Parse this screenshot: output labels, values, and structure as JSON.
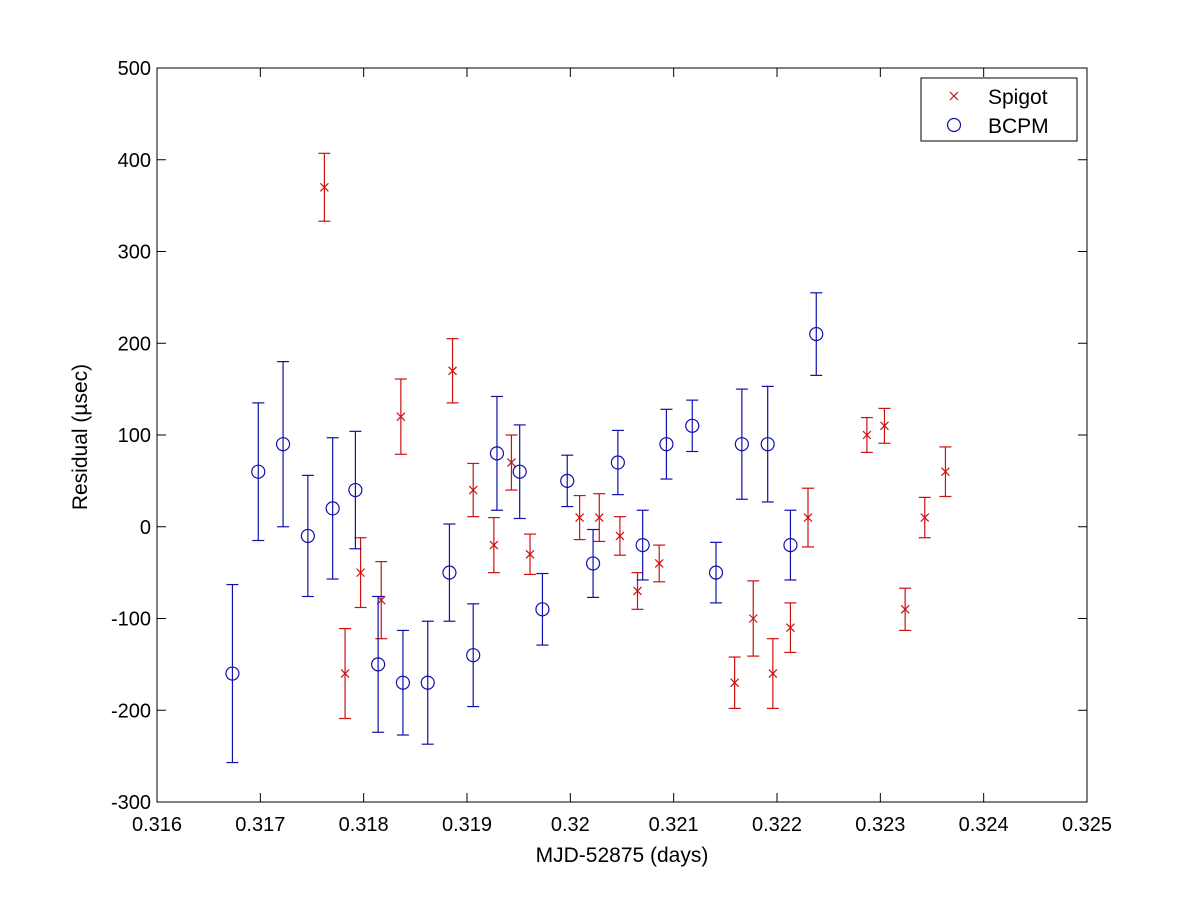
{
  "chart_data": {
    "type": "scatter",
    "title": "",
    "xlabel": "MJD-52875 (days)",
    "ylabel": "Residual (µsec)",
    "xlim": [
      0.316,
      0.325
    ],
    "ylim": [
      -300,
      500
    ],
    "xticks": [
      0.316,
      0.317,
      0.318,
      0.319,
      0.32,
      0.321,
      0.322,
      0.323,
      0.324,
      0.325
    ],
    "xtick_labels": [
      "0.316",
      "0.317",
      "0.318",
      "0.319",
      "0.32",
      "0.321",
      "0.322",
      "0.323",
      "0.324",
      "0.325"
    ],
    "yticks": [
      -300,
      -200,
      -100,
      0,
      100,
      200,
      300,
      400,
      500
    ],
    "ytick_labels": [
      "-300",
      "-200",
      "-100",
      "0",
      "100",
      "200",
      "300",
      "400",
      "500"
    ],
    "grid": false,
    "legend": {
      "position": "top-right"
    },
    "series": [
      {
        "name": "Spigot",
        "marker": "x",
        "color": "#cc1111",
        "points": [
          {
            "x": 0.31762,
            "y": 370,
            "err": 37
          },
          {
            "x": 0.31782,
            "y": -160,
            "err": 49
          },
          {
            "x": 0.31797,
            "y": -50,
            "err": 38
          },
          {
            "x": 0.31817,
            "y": -80,
            "err": 42
          },
          {
            "x": 0.31836,
            "y": 120,
            "err": 41
          },
          {
            "x": 0.31886,
            "y": 170,
            "err": 35
          },
          {
            "x": 0.31906,
            "y": 40,
            "err": 29
          },
          {
            "x": 0.31926,
            "y": -20,
            "err": 30
          },
          {
            "x": 0.31943,
            "y": 70,
            "err": 30
          },
          {
            "x": 0.31961,
            "y": -30,
            "err": 22
          },
          {
            "x": 0.32009,
            "y": 10,
            "err": 24
          },
          {
            "x": 0.32028,
            "y": 10,
            "err": 26
          },
          {
            "x": 0.32048,
            "y": -10,
            "err": 21
          },
          {
            "x": 0.32065,
            "y": -70,
            "err": 20
          },
          {
            "x": 0.32086,
            "y": -40,
            "err": 20
          },
          {
            "x": 0.32159,
            "y": -170,
            "err": 28
          },
          {
            "x": 0.32177,
            "y": -100,
            "err": 41
          },
          {
            "x": 0.32196,
            "y": -160,
            "err": 38
          },
          {
            "x": 0.32213,
            "y": -110,
            "err": 27
          },
          {
            "x": 0.3223,
            "y": 10,
            "err": 32
          },
          {
            "x": 0.32287,
            "y": 100,
            "err": 19
          },
          {
            "x": 0.32304,
            "y": 110,
            "err": 19
          },
          {
            "x": 0.32324,
            "y": -90,
            "err": 23
          },
          {
            "x": 0.32343,
            "y": 10,
            "err": 22
          },
          {
            "x": 0.32363,
            "y": 60,
            "err": 27
          }
        ]
      },
      {
        "name": "BCPM",
        "marker": "o",
        "color": "#1010aa",
        "points": [
          {
            "x": 0.31673,
            "y": -160,
            "err": 97
          },
          {
            "x": 0.31698,
            "y": 60,
            "err": 75
          },
          {
            "x": 0.31722,
            "y": 90,
            "err": 90
          },
          {
            "x": 0.31746,
            "y": -10,
            "err": 66
          },
          {
            "x": 0.3177,
            "y": 20,
            "err": 77
          },
          {
            "x": 0.31792,
            "y": 40,
            "err": 64
          },
          {
            "x": 0.31814,
            "y": -150,
            "err": 74
          },
          {
            "x": 0.31838,
            "y": -170,
            "err": 57
          },
          {
            "x": 0.31862,
            "y": -170,
            "err": 67
          },
          {
            "x": 0.31883,
            "y": -50,
            "err": 53
          },
          {
            "x": 0.31906,
            "y": -140,
            "err": 56
          },
          {
            "x": 0.31929,
            "y": 80,
            "err": 62
          },
          {
            "x": 0.31951,
            "y": 60,
            "err": 51
          },
          {
            "x": 0.31973,
            "y": -90,
            "err": 39
          },
          {
            "x": 0.31997,
            "y": 50,
            "err": 28
          },
          {
            "x": 0.32022,
            "y": -40,
            "err": 37
          },
          {
            "x": 0.32046,
            "y": 70,
            "err": 35
          },
          {
            "x": 0.3207,
            "y": -20,
            "err": 38
          },
          {
            "x": 0.32093,
            "y": 90,
            "err": 38
          },
          {
            "x": 0.32118,
            "y": 110,
            "err": 28
          },
          {
            "x": 0.32141,
            "y": -50,
            "err": 33
          },
          {
            "x": 0.32166,
            "y": 90,
            "err": 60
          },
          {
            "x": 0.32191,
            "y": 90,
            "err": 63
          },
          {
            "x": 0.32213,
            "y": -20,
            "err": 38
          },
          {
            "x": 0.32238,
            "y": 210,
            "err": 45
          }
        ]
      }
    ]
  }
}
